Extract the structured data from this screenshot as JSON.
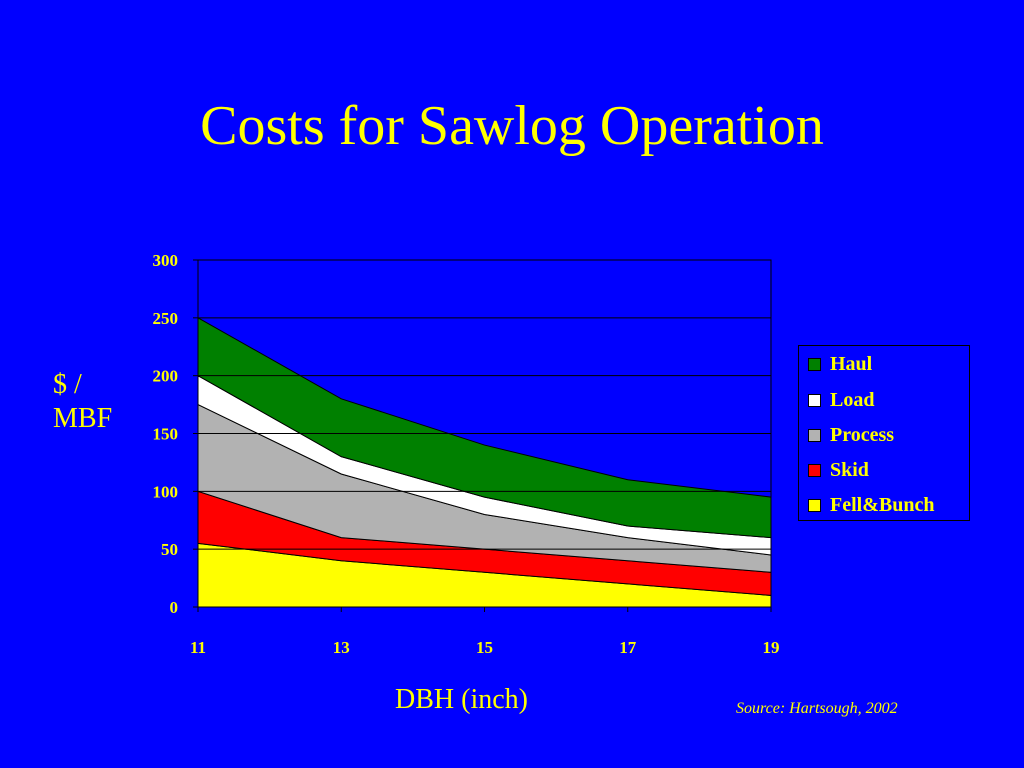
{
  "slide": {
    "title": "Costs for Sawlog Operation",
    "ylabel": "$ / MBF",
    "ylabel_line1": "$ /",
    "ylabel_line2": "MBF",
    "xlabel": "DBH (inch)",
    "source": "Source: Hartsough, 2002"
  },
  "chart_data": {
    "type": "area",
    "stacked": true,
    "x": [
      11,
      13,
      15,
      17,
      19
    ],
    "series": [
      {
        "name": "Fell&Bunch",
        "values": [
          55,
          40,
          30,
          20,
          10
        ],
        "color": "#ffff00"
      },
      {
        "name": "Skid",
        "values": [
          45,
          20,
          20,
          20,
          20
        ],
        "color": "#ff0000"
      },
      {
        "name": "Process",
        "values": [
          75,
          55,
          30,
          20,
          15
        ],
        "color": "#b2b2b2"
      },
      {
        "name": "Load",
        "values": [
          25,
          15,
          15,
          10,
          15
        ],
        "color": "#ffffff"
      },
      {
        "name": "Haul",
        "values": [
          50,
          50,
          45,
          40,
          35
        ],
        "color": "#008000"
      }
    ],
    "ylim": [
      0,
      300
    ],
    "yticks": [
      0,
      50,
      100,
      150,
      200,
      250,
      300
    ],
    "xticks": [
      11,
      13,
      15,
      17,
      19
    ],
    "grid": true,
    "legend_position": "right",
    "legend_order": [
      "Haul",
      "Load",
      "Process",
      "Skid",
      "Fell&Bunch"
    ],
    "plot_background": "#0000ff"
  }
}
